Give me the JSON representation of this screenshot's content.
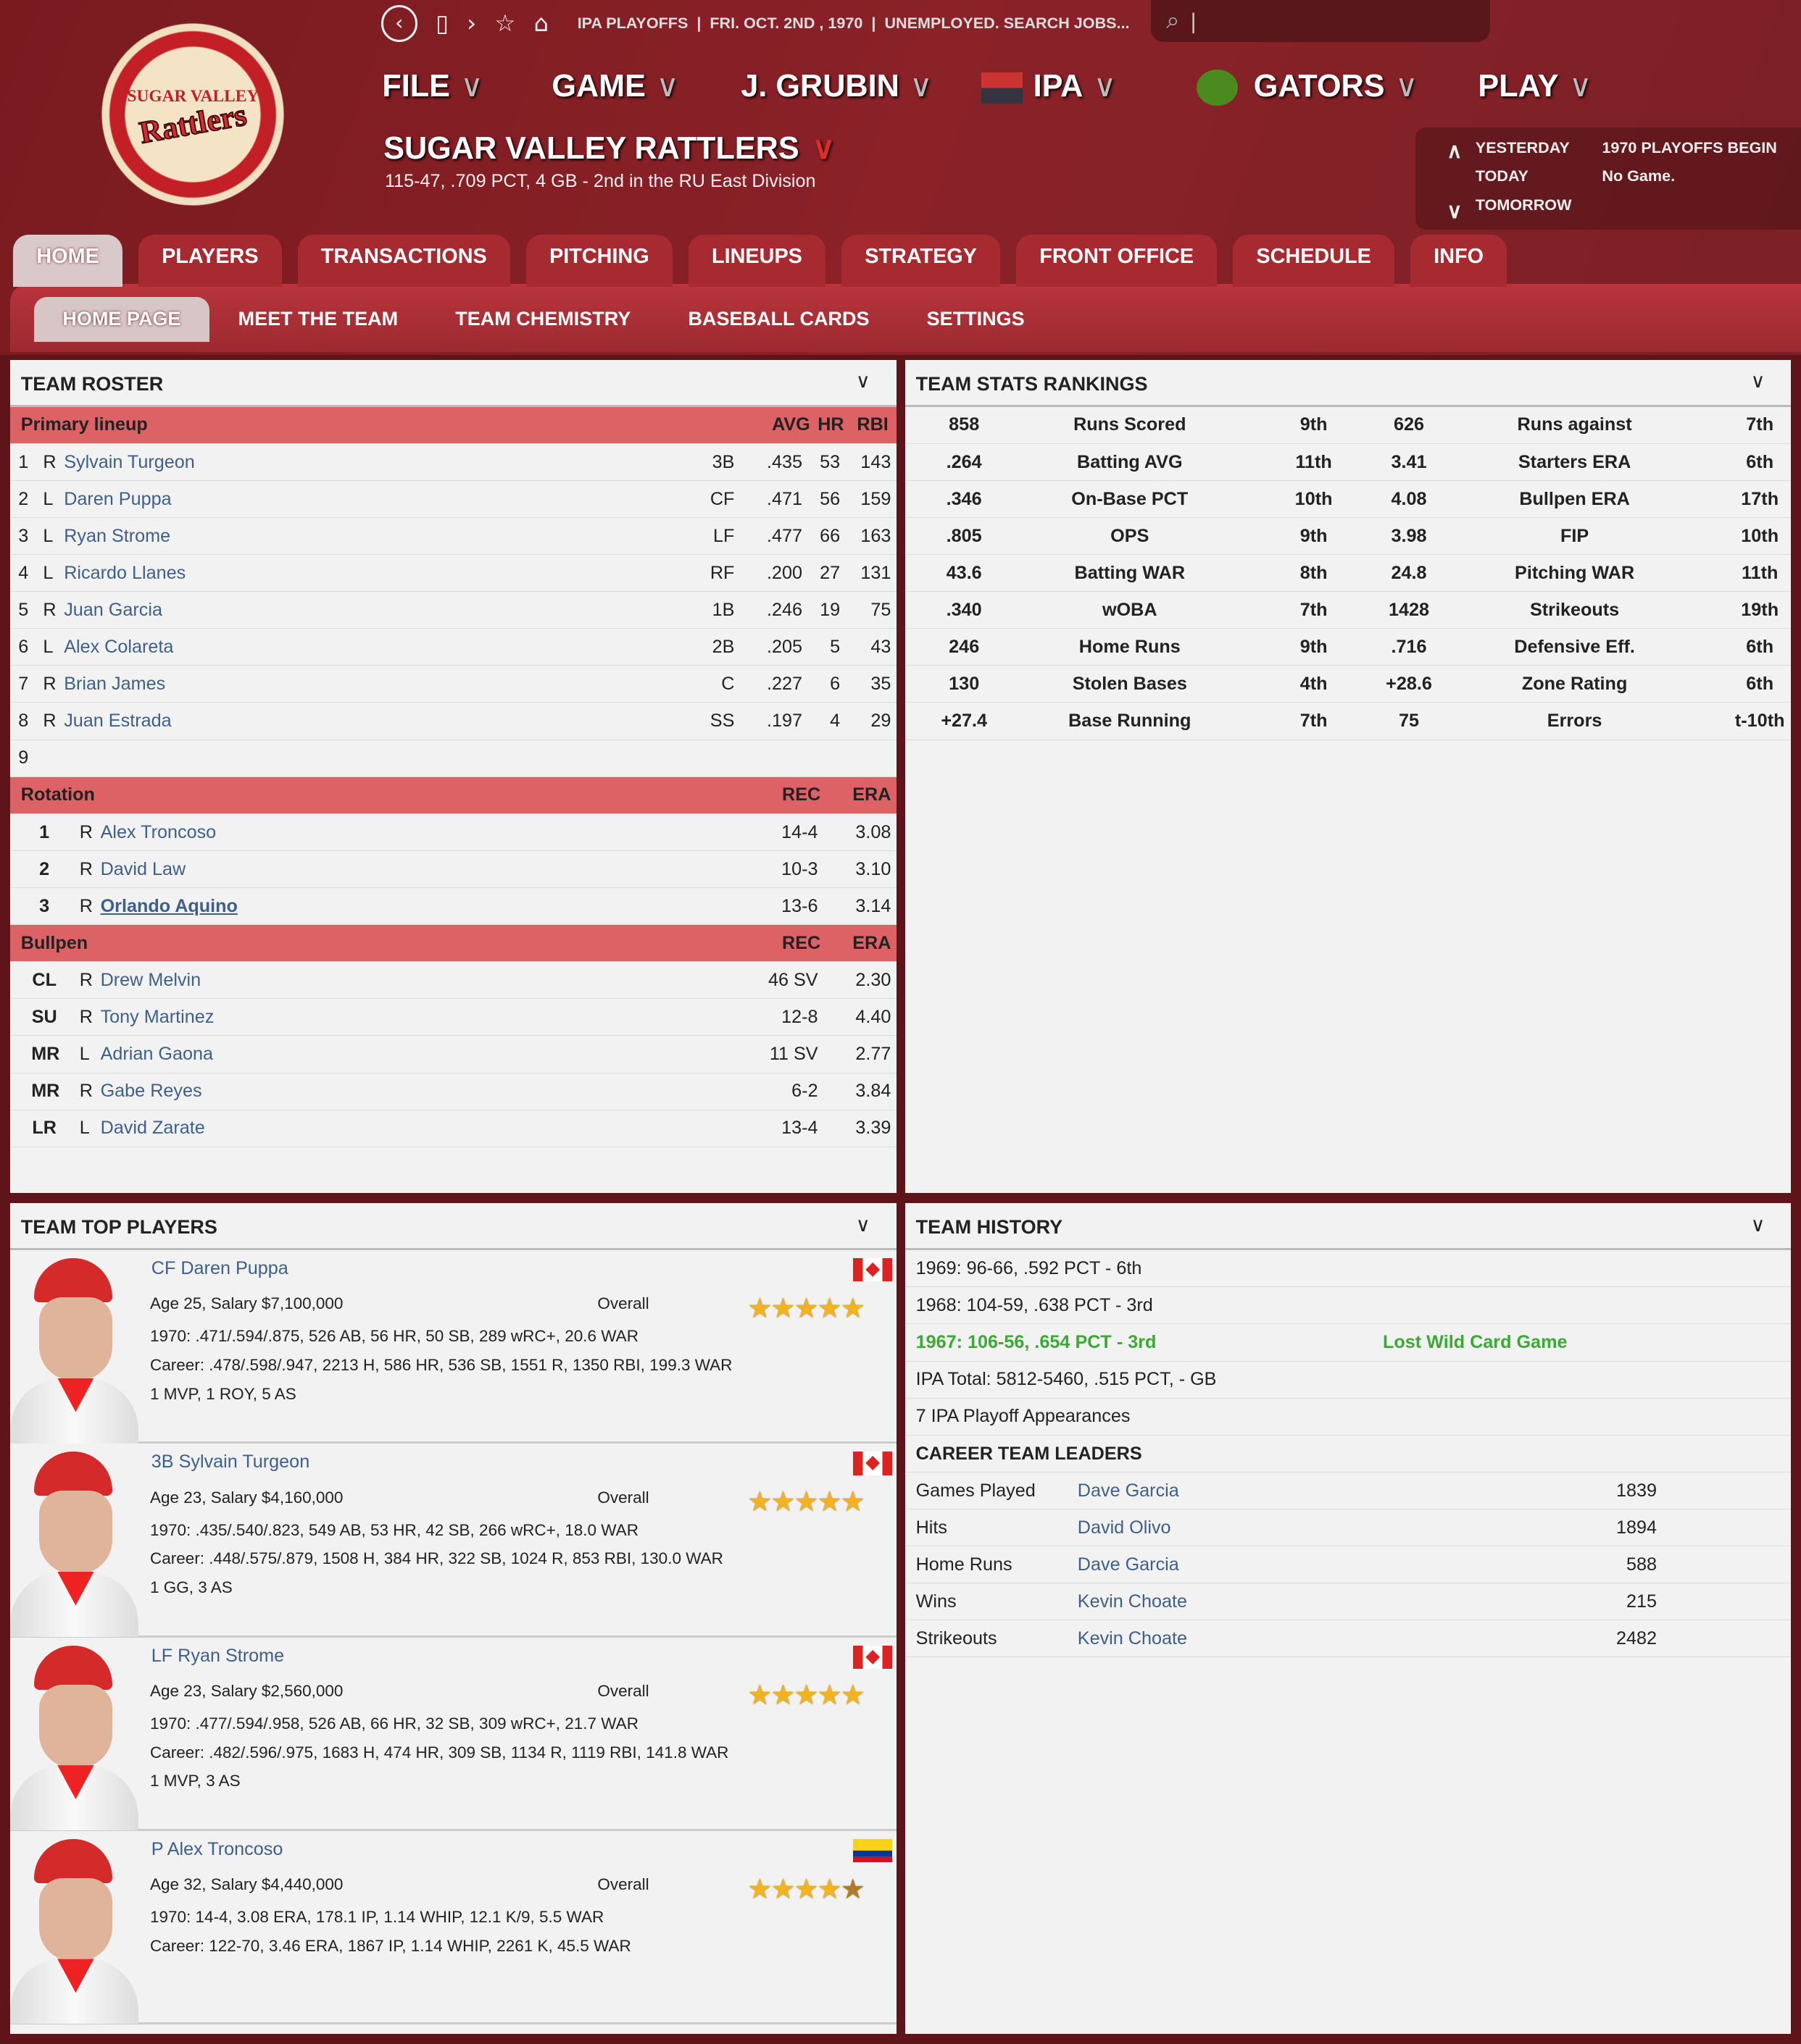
{
  "topbar": {
    "breadcrumb": "IPA PLAYOFFS  |  FRI. OCT. 2ND , 1970  |  UNEMPLOYED. SEARCH JOBS...",
    "search_placeholder": ""
  },
  "logo": {
    "text_top": "SUGAR VALLEY",
    "text_main": "Rattlers"
  },
  "menu": [
    {
      "label": "FILE"
    },
    {
      "label": "GAME"
    },
    {
      "label": "J. GRUBIN"
    },
    {
      "label": "IPA"
    },
    {
      "label": "GATORS"
    },
    {
      "label": "PLAY"
    }
  ],
  "team": {
    "name": "SUGAR VALLEY RATTLERS",
    "record": "115-47, .709 PCT, 4 GB - 2nd in the RU East Division"
  },
  "calendar": {
    "yesterday": "YESTERDAY",
    "today": "TODAY",
    "tomorrow": "TOMORROW",
    "yesterday_event": "1970 PLAYOFFS BEGIN",
    "today_event": "No Game."
  },
  "tabs": [
    "HOME",
    "PLAYERS",
    "TRANSACTIONS",
    "PITCHING",
    "LINEUPS",
    "STRATEGY",
    "FRONT OFFICE",
    "SCHEDULE",
    "INFO"
  ],
  "active_tab": "HOME",
  "subtabs": [
    "HOME PAGE",
    "MEET THE TEAM",
    "TEAM CHEMISTRY",
    "BASEBALL CARDS",
    "SETTINGS"
  ],
  "active_subtab": "HOME PAGE",
  "roster": {
    "title": "TEAM ROSTER",
    "lineup_header": {
      "label": "Primary lineup",
      "cols": [
        "AVG",
        "HR",
        "RBI"
      ]
    },
    "lineup": [
      [
        "1",
        "R",
        "Sylvain Turgeon",
        "3B",
        ".435",
        "53",
        "143"
      ],
      [
        "2",
        "L",
        "Daren Puppa",
        "CF",
        ".471",
        "56",
        "159"
      ],
      [
        "3",
        "L",
        "Ryan Strome",
        "LF",
        ".477",
        "66",
        "163"
      ],
      [
        "4",
        "L",
        "Ricardo Llanes",
        "RF",
        ".200",
        "27",
        "131"
      ],
      [
        "5",
        "R",
        "Juan Garcia",
        "1B",
        ".246",
        "19",
        "75"
      ],
      [
        "6",
        "L",
        "Alex Colareta",
        "2B",
        ".205",
        "5",
        "43"
      ],
      [
        "7",
        "R",
        "Brian James",
        "C",
        ".227",
        "6",
        "35"
      ],
      [
        "8",
        "R",
        "Juan Estrada",
        "SS",
        ".197",
        "4",
        "29"
      ],
      [
        "9",
        "",
        "",
        "",
        "",
        "",
        ""
      ]
    ],
    "rotation_header": {
      "label": "Rotation",
      "cols": [
        "REC",
        "ERA"
      ]
    },
    "rotation": [
      [
        "1",
        "R",
        "Alex Troncoso",
        "14-4",
        "3.08"
      ],
      [
        "2",
        "R",
        "David Law",
        "10-3",
        "3.10"
      ],
      [
        "3",
        "R",
        "Orlando Aquino",
        "13-6",
        "3.14"
      ]
    ],
    "bullpen_header": {
      "label": "Bullpen",
      "cols": [
        "REC",
        "ERA"
      ]
    },
    "bullpen": [
      [
        "CL",
        "R",
        "Drew Melvin",
        "46 SV",
        "2.30"
      ],
      [
        "SU",
        "R",
        "Tony Martinez",
        "12-8",
        "4.40"
      ],
      [
        "MR",
        "L",
        "Adrian Gaona",
        "11 SV",
        "2.77"
      ],
      [
        "MR",
        "R",
        "Gabe Reyes",
        "6-2",
        "3.84"
      ],
      [
        "LR",
        "L",
        "David Zarate",
        "13-4",
        "3.39"
      ]
    ]
  },
  "rankings": {
    "title": "TEAM STATS RANKINGS",
    "rows": [
      [
        "858",
        "Runs Scored",
        "9th",
        "626",
        "Runs against",
        "7th"
      ],
      [
        ".264",
        "Batting AVG",
        "11th",
        "3.41",
        "Starters ERA",
        "6th"
      ],
      [
        ".346",
        "On-Base PCT",
        "10th",
        "4.08",
        "Bullpen ERA",
        "17th"
      ],
      [
        ".805",
        "OPS",
        "9th",
        "3.98",
        "FIP",
        "10th"
      ],
      [
        "43.6",
        "Batting WAR",
        "8th",
        "24.8",
        "Pitching WAR",
        "11th"
      ],
      [
        ".340",
        "wOBA",
        "7th",
        "1428",
        "Strikeouts",
        "19th"
      ],
      [
        "246",
        "Home Runs",
        "9th",
        ".716",
        "Defensive Eff.",
        "6th"
      ],
      [
        "130",
        "Stolen Bases",
        "4th",
        "+28.6",
        "Zone Rating",
        "6th"
      ],
      [
        "+27.4",
        "Base Running",
        "7th",
        "75",
        "Errors",
        "t-10th"
      ]
    ]
  },
  "top_players": {
    "title": "TEAM TOP PLAYERS",
    "overall_label": "Overall",
    "players": [
      {
        "name": "CF Daren Puppa",
        "info": "Age 25, Salary $7,100,000",
        "season": "1970: .471/.594/.875, 526 AB, 56 HR, 50 SB, 289 wRC+, 20.6 WAR",
        "career": "Career: .478/.598/.947, 2213 H, 586 HR, 536 SB, 1551 R, 1350 RBI, 199.3 WAR",
        "awards": "1 MVP, 1 ROY, 5 AS",
        "flag": "canada",
        "rating": 5
      },
      {
        "name": "3B Sylvain Turgeon",
        "info": "Age 23, Salary $4,160,000",
        "season": "1970: .435/.540/.823, 549 AB, 53 HR, 42 SB, 266 wRC+, 18.0 WAR",
        "career": "Career: .448/.575/.879, 1508 H, 384 HR, 322 SB, 1024 R, 853 RBI, 130.0 WAR",
        "awards": "1 GG, 3 AS",
        "flag": "canada",
        "rating": 5
      },
      {
        "name": "LF Ryan Strome",
        "info": "Age 23, Salary $2,560,000",
        "season": "1970: .477/.594/.958, 526 AB, 66 HR, 32 SB, 309 wRC+, 21.7 WAR",
        "career": "Career: .482/.596/.975, 1683 H, 474 HR, 309 SB, 1134 R, 1119 RBI, 141.8 WAR",
        "awards": "1 MVP, 3 AS",
        "flag": "canada",
        "rating": 5
      },
      {
        "name": "P Alex Troncoso",
        "info": "Age 32, Salary $4,440,000",
        "season": "1970: 14-4, 3.08 ERA, 178.1 IP, 1.14 WHIP, 12.1 K/9, 5.5 WAR",
        "career": "Career: 122-70, 3.46 ERA, 1867 IP, 1.14 WHIP, 2261 K, 45.5 WAR",
        "awards": "",
        "flag": "colombia",
        "rating": 4.5
      }
    ]
  },
  "history": {
    "title": "TEAM HISTORY",
    "seasons": [
      {
        "text": "1969: 96-66, .592 PCT - 6th",
        "note": ""
      },
      {
        "text": "1968: 104-59, .638 PCT - 3rd",
        "note": ""
      },
      {
        "text": "1967: 106-56, .654 PCT - 3rd",
        "note": "Lost Wild Card Game",
        "highlight": "#3aaa35"
      }
    ],
    "total": "IPA Total: 5812-5460, .515 PCT, - GB",
    "playoffs": "7 IPA Playoff Appearances",
    "leaders_title": "CAREER TEAM LEADERS",
    "leaders": [
      [
        "Games Played",
        "Dave Garcia",
        "1839"
      ],
      [
        "Hits",
        "David Olivo",
        "1894"
      ],
      [
        "Home Runs",
        "Dave Garcia",
        "588"
      ],
      [
        "Wins",
        "Kevin Choate",
        "215"
      ],
      [
        "Strikeouts",
        "Kevin Choate",
        "2482"
      ]
    ]
  },
  "colors": {
    "header": "#7a1a1f",
    "band": "#dd6266",
    "link": "#3d5f8c",
    "star": "#f2b31c"
  }
}
